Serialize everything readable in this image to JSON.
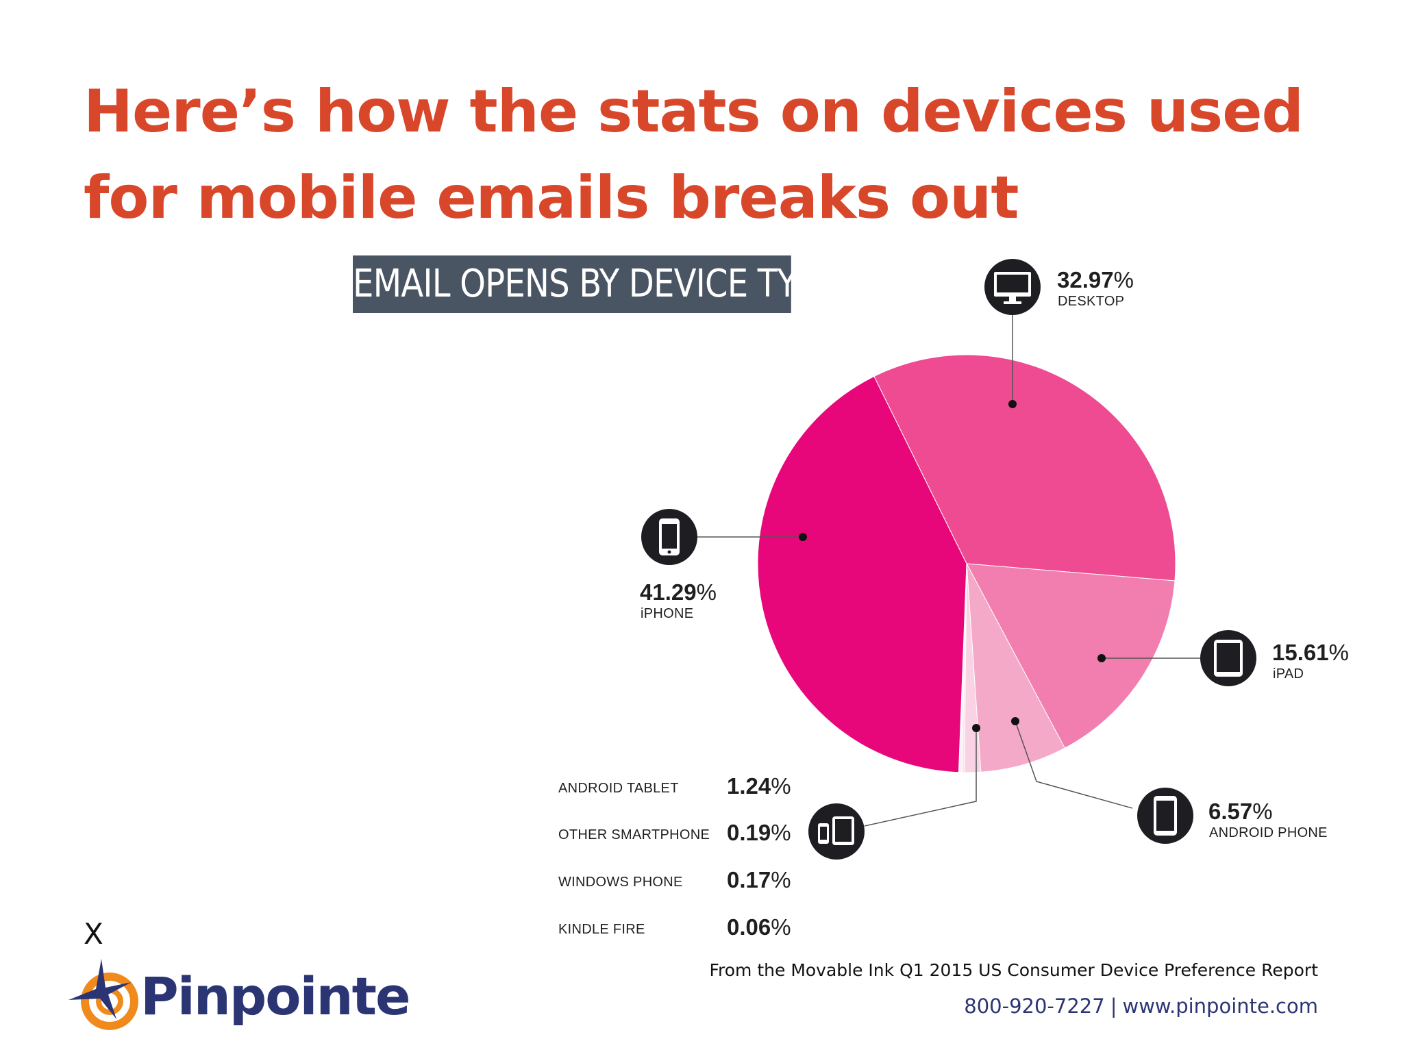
{
  "headline": {
    "line1": "Here’s how the stats on devices used",
    "line2": "for mobile emails breaks out"
  },
  "chart_data": {
    "type": "pie",
    "title": "EMAIL OPENS BY DEVICE TYPE",
    "slices": [
      {
        "name": "iPHONE",
        "value": 41.29,
        "pct_text": "41.29",
        "color": "#e8077b",
        "icon": "iphone-icon"
      },
      {
        "name": "DESKTOP",
        "value": 32.97,
        "pct_text": "32.97",
        "color": "#ee4b92",
        "icon": "desktop-icon"
      },
      {
        "name": "iPAD",
        "value": 15.61,
        "pct_text": "15.61",
        "color": "#f17eaf",
        "icon": "tablet-icon"
      },
      {
        "name": "ANDROID PHONE",
        "value": 6.57,
        "pct_text": "6.57",
        "color": "#f5a9c9",
        "icon": "android-phone-icon"
      },
      {
        "name": "ANDROID TABLET",
        "value": 1.24,
        "pct_text": "1.24",
        "color": "#f9d3e3"
      },
      {
        "name": "OTHER SMARTPHONE",
        "value": 0.19,
        "pct_text": "0.19",
        "color": "#fbe2ec"
      },
      {
        "name": "WINDOWS PHONE",
        "value": 0.17,
        "pct_text": "0.17",
        "color": "#fdeef4"
      },
      {
        "name": "KINDLE FIRE",
        "value": 0.06,
        "pct_text": "0.06",
        "color": "#fef6f9"
      }
    ],
    "other_group_icon": "phone-and-tablet-icon",
    "pct_sign": "%"
  },
  "close_mark": "X",
  "brand": {
    "name": "Pinpointe",
    "icon": "pinpointe-logo-icon",
    "accent_color": "#f08a1c",
    "navy_color": "#2c3574"
  },
  "footer": {
    "source": "From the Movable Ink Q1 2015 US Consumer Device Preference Report",
    "phone": "800-920-7227",
    "separator": "|",
    "website": "www.pinpointe.com"
  }
}
